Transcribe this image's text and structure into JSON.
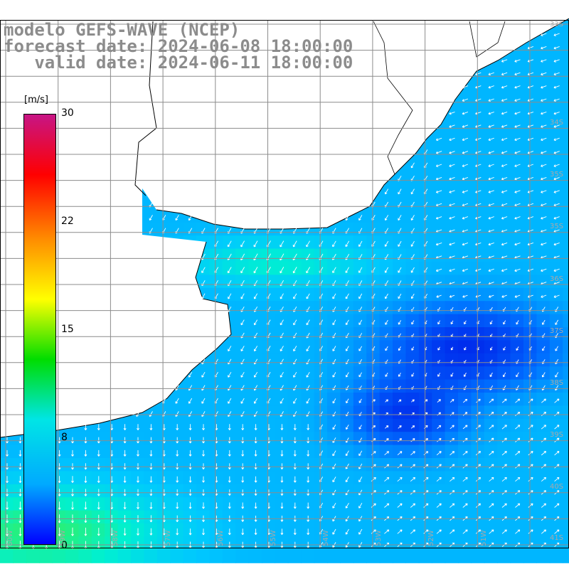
{
  "title": {
    "line1": "modelo GEFS-WAVE (NCEP)",
    "line2": "forecast date: 2024-06-08 18:00:00",
    "line3": "   valid date: 2024-06-11 18:00:00"
  },
  "legend": {
    "unit": "[m/s]",
    "ticks": [
      "30",
      "22",
      "15",
      "8",
      "0"
    ],
    "colors": [
      "#0000ff",
      "#00aaff",
      "#00e5e5",
      "#00dd00",
      "#ffff00",
      "#ff8c00",
      "#ff0000",
      "#c71585"
    ]
  },
  "lat_labels": [
    "33S",
    "34S",
    "35S",
    "36S",
    "37S",
    "38S",
    "39S",
    "40S",
    "41S"
  ],
  "lon_labels": [
    "60W",
    "59W",
    "58W",
    "57W",
    "56W",
    "55W",
    "54W",
    "53W",
    "52W",
    "51W"
  ],
  "colors": {
    "land": "#ffffff",
    "coast": "#000000",
    "grid": "#8c8c8c",
    "arrow": "#ffffff",
    "title": "#8c8c8c"
  }
}
